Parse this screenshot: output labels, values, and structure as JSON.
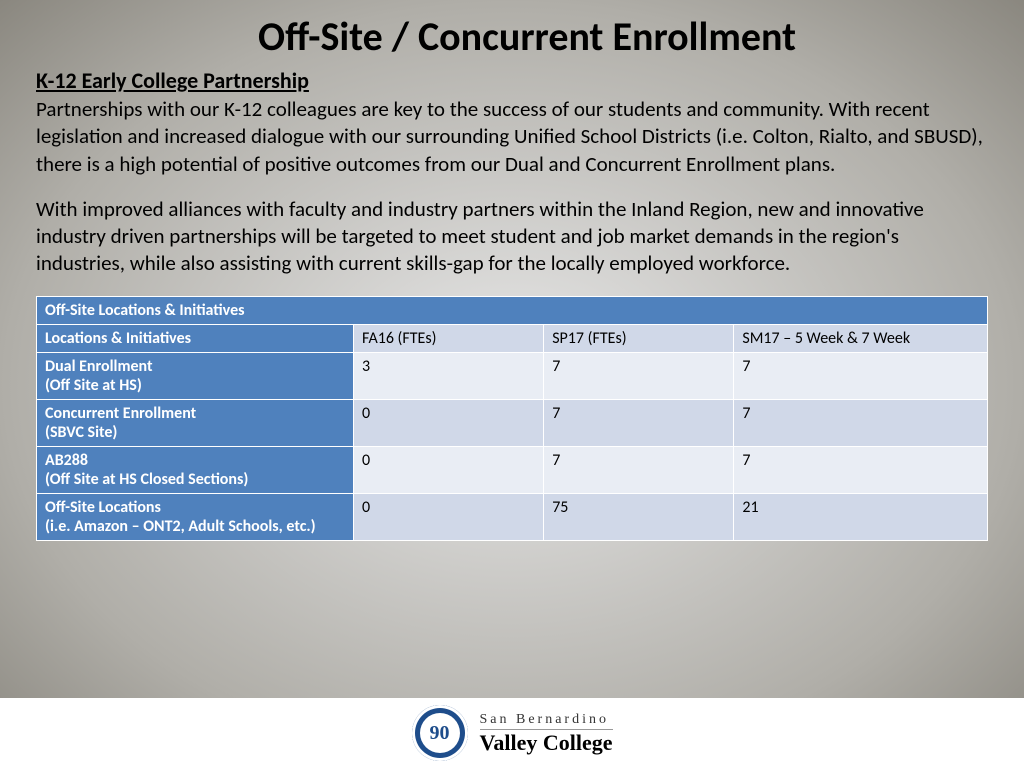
{
  "title": "Off-Site / Concurrent Enrollment",
  "subtitle": "K-12 Early College Partnership",
  "para1": "Partnerships with our K-12 colleagues are key to the success of our students and community.  With recent legislation and increased dialogue with our surrounding Unified School Districts (i.e. Colton, Rialto, and SBUSD), there is a high potential of positive outcomes from our Dual and Concurrent Enrollment plans.",
  "para2": "With improved alliances with faculty and industry partners within the Inland Region, new and innovative industry driven partnerships will be targeted to meet student and job market demands in the region's industries, while also assisting with current skills-gap for the locally employed workforce.",
  "table": {
    "header_main": "Off-Site Locations & Initiatives",
    "columns": [
      "Locations & Initiatives",
      "FA16 (FTEs)",
      "SP17 (FTEs)",
      "SM17 – 5 Week & 7 Week"
    ],
    "rows": [
      {
        "label": "Dual Enrollment\n(Off Site at HS)",
        "cells": [
          "3",
          "7",
          "7"
        ]
      },
      {
        "label": "Concurrent Enrollment\n(SBVC Site)",
        "cells": [
          "0",
          "7",
          "7"
        ]
      },
      {
        "label": "AB288\n(Off Site at HS Closed Sections)",
        "cells": [
          "0",
          "7",
          "7"
        ]
      },
      {
        "label": "Off-Site Locations\n(i.e. Amazon – ONT2, Adult Schools, etc.)",
        "cells": [
          "0",
          "75",
          "21"
        ]
      }
    ],
    "colors": {
      "header_bg": "#4f81bd",
      "header_fg": "#ffffff",
      "subheader_data_bg": "#d0d8e8",
      "row_odd_bg": "#e9edf4",
      "row_even_bg": "#d0d8e8",
      "border": "#ffffff"
    }
  },
  "footer": {
    "badge_number": "90",
    "org_line1": "San Bernardino",
    "org_line2": "Valley College"
  }
}
